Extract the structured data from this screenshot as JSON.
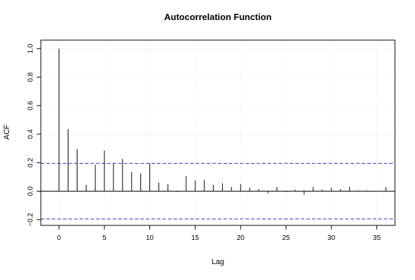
{
  "chart_data": {
    "type": "bar",
    "title": "Autocorrelation Function",
    "xlabel": "Lag",
    "ylabel": "ACF",
    "xlim": [
      -2,
      37
    ],
    "ylim": [
      -0.24,
      1.06
    ],
    "grid": true,
    "x_ticks": [
      0,
      5,
      10,
      15,
      20,
      25,
      30,
      35
    ],
    "y_ticks": [
      -0.2,
      0.0,
      0.2,
      0.4,
      0.6,
      0.8,
      1.0
    ],
    "x_tick_labels": [
      "0",
      "5",
      "10",
      "15",
      "20",
      "25",
      "30",
      "35"
    ],
    "y_tick_labels": [
      "−0.2",
      "0.0",
      "0.2",
      "0.4",
      "0.6",
      "0.8",
      "1.0"
    ],
    "lags": [
      0,
      1,
      2,
      3,
      4,
      5,
      6,
      7,
      8,
      9,
      10,
      11,
      12,
      13,
      14,
      15,
      16,
      17,
      18,
      19,
      20,
      21,
      22,
      23,
      24,
      25,
      26,
      27,
      28,
      29,
      30,
      31,
      32,
      33,
      34,
      35,
      36
    ],
    "acf": [
      1.0,
      0.435,
      0.295,
      0.045,
      0.185,
      0.285,
      0.195,
      0.225,
      0.135,
      0.125,
      0.195,
      0.06,
      0.05,
      -0.005,
      0.105,
      0.075,
      0.08,
      0.045,
      0.055,
      0.03,
      0.05,
      0.025,
      0.015,
      -0.015,
      0.03,
      -0.005,
      0.01,
      -0.025,
      0.03,
      0.01,
      0.025,
      0.015,
      0.03,
      0.005,
      0.005,
      0.0,
      0.03
    ],
    "confidence_bounds": [
      0.195,
      -0.195
    ],
    "colors": {
      "bars": "#000000",
      "bounds": "#3333cc",
      "grid": "#dddddd",
      "zero_line": "#000000",
      "axis": "#000000"
    }
  }
}
